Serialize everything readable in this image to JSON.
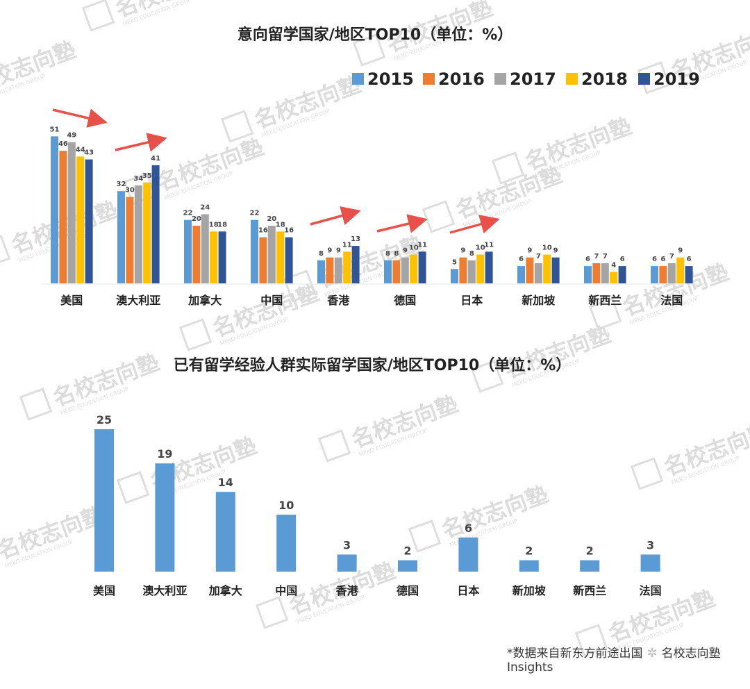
{
  "colors": {
    "2015": "#5b9bd5",
    "2016": "#ed7d31",
    "2017": "#a5a5a5",
    "2018": "#ffc000",
    "2019": "#2f5597",
    "single": "#5b9bd5",
    "arrow": "#e8504a"
  },
  "chart_data": [
    {
      "type": "bar",
      "title": "意向留学国家/地区TOP10（单位：%）",
      "categories": [
        "美国",
        "澳大利亚",
        "加拿大",
        "中国",
        "香港",
        "德国",
        "日本",
        "新加坡",
        "新西兰",
        "法国"
      ],
      "series": [
        {
          "name": "2015",
          "values": [
            51,
            32,
            22,
            22,
            8,
            8,
            5,
            6,
            6,
            6
          ]
        },
        {
          "name": "2016",
          "values": [
            46,
            30,
            20,
            16,
            9,
            8,
            9,
            9,
            7,
            6
          ]
        },
        {
          "name": "2017",
          "values": [
            49,
            34,
            24,
            20,
            9,
            9,
            8,
            7,
            7,
            7
          ]
        },
        {
          "name": "2018",
          "values": [
            44,
            35,
            18,
            18,
            11,
            10,
            10,
            10,
            4,
            9
          ]
        },
        {
          "name": "2019",
          "values": [
            43,
            41,
            18,
            16,
            13,
            11,
            11,
            9,
            6,
            6
          ]
        }
      ],
      "legend": "top-right",
      "trend_arrows": [
        "美国",
        "澳大利亚",
        "香港",
        "德国",
        "日本"
      ]
    },
    {
      "type": "bar",
      "title": "已有留学经验人群实际留学国家/地区TOP10（单位：%）",
      "categories": [
        "美国",
        "澳大利亚",
        "加拿大",
        "中国",
        "香港",
        "德国",
        "日本",
        "新加坡",
        "新西兰",
        "法国"
      ],
      "values": [
        25,
        19,
        14,
        10,
        3,
        2,
        6,
        2,
        2,
        3
      ]
    }
  ],
  "watermark": {
    "text": "名校志向塾",
    "sub": "MEKO EDUCATION GROUP"
  },
  "footer": {
    "note": "*数据来自新东方前途出国",
    "source": "名校志向塾Insights"
  }
}
